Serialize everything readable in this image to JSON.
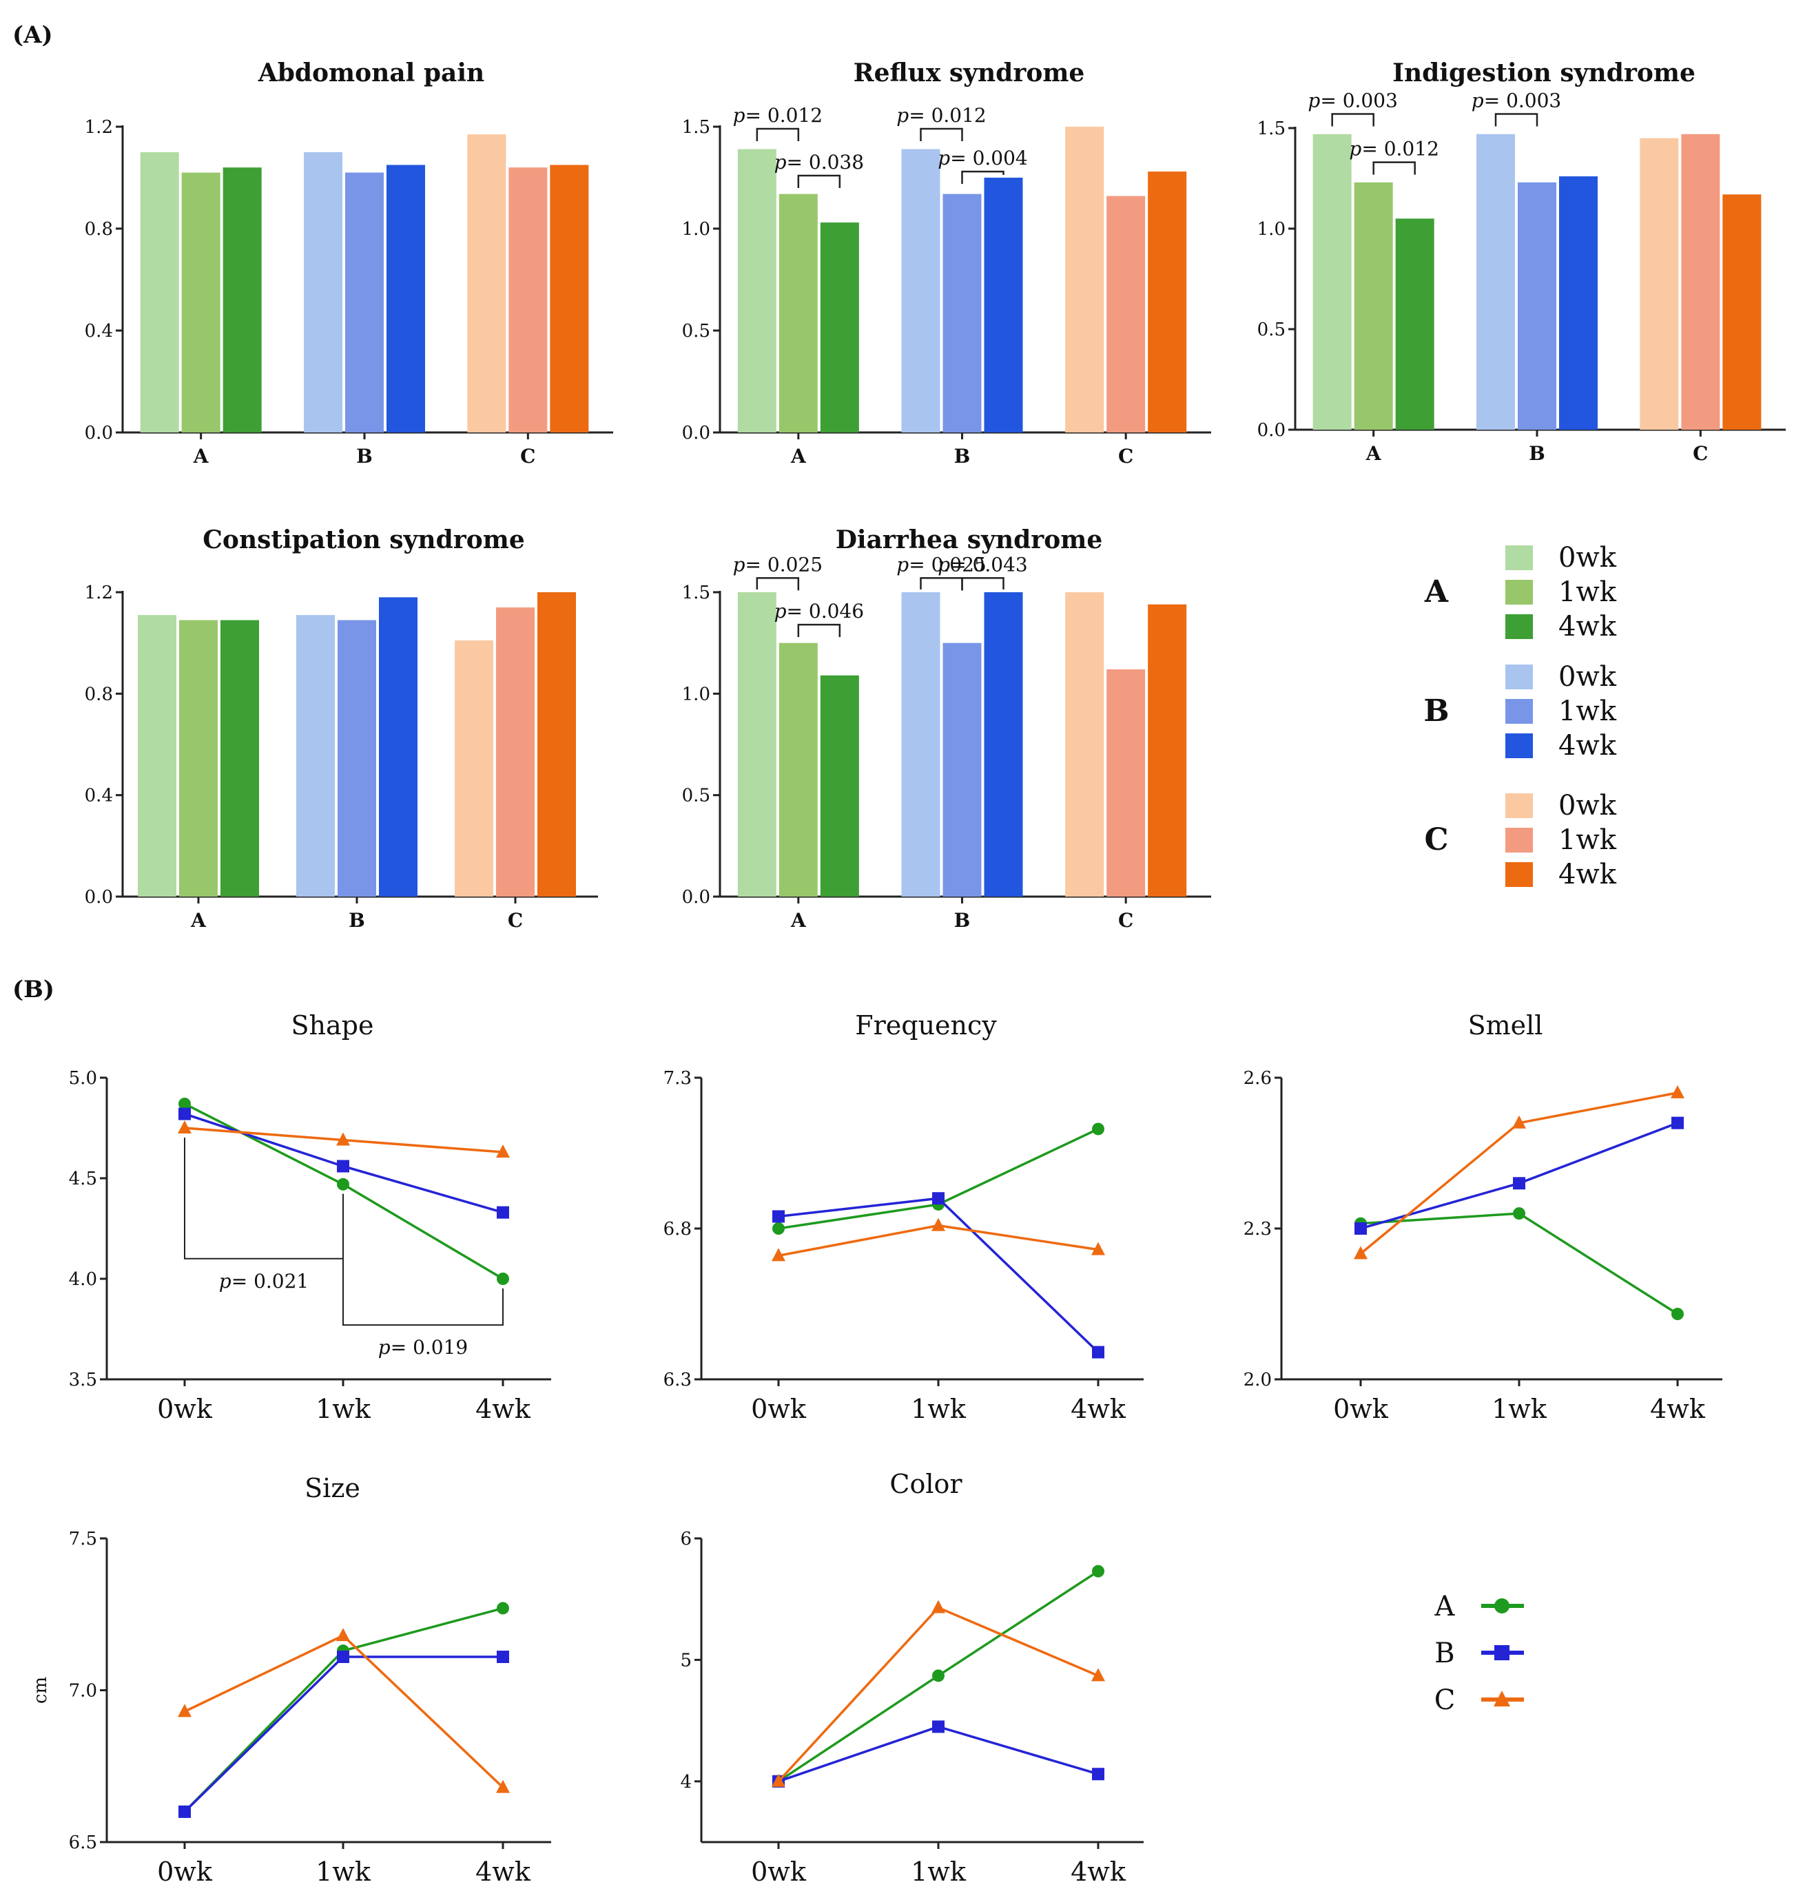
{
  "panel_labels": {
    "a": "(A)",
    "b": "(B)"
  },
  "colors": {
    "A": [
      "#b0dba2",
      "#98c76b",
      "#3d9f34"
    ],
    "B": [
      "#a9c4ef",
      "#7895e8",
      "#2256de"
    ],
    "C": [
      "#fac9a2",
      "#f39b80",
      "#ec6a10"
    ],
    "line": {
      "A": "#1e9a1e",
      "B": "#2424d6",
      "C": "#ee6a10"
    }
  },
  "legend": {
    "groups": [
      "A",
      "B",
      "C"
    ],
    "timepoints": [
      "0wk",
      "1wk",
      "4wk"
    ]
  },
  "chart_data": [
    {
      "type": "bar",
      "title": "Abdomonal pain",
      "categories": [
        "A",
        "B",
        "C"
      ],
      "series": [
        {
          "name": "0wk",
          "values": [
            1.1,
            1.1,
            1.17
          ]
        },
        {
          "name": "1wk",
          "values": [
            1.02,
            1.02,
            1.04
          ]
        },
        {
          "name": "4wk",
          "values": [
            1.04,
            1.05,
            1.05
          ]
        }
      ],
      "ylim": [
        0,
        1.2
      ],
      "yticks": [
        "0.0",
        "0.4",
        "0.8",
        "1.2"
      ],
      "annotations": []
    },
    {
      "type": "bar",
      "title": "Reflux syndrome",
      "categories": [
        "A",
        "B",
        "C"
      ],
      "series": [
        {
          "name": "0wk",
          "values": [
            1.39,
            1.39,
            1.5
          ]
        },
        {
          "name": "1wk",
          "values": [
            1.17,
            1.17,
            1.16
          ]
        },
        {
          "name": "4wk",
          "values": [
            1.03,
            1.25,
            1.28
          ]
        }
      ],
      "ylim": [
        0,
        1.5
      ],
      "yticks": [
        "0.0",
        "0.5",
        "1.0",
        "1.5"
      ],
      "annotations": [
        {
          "group": 0,
          "from": 0,
          "to": 1,
          "level": 1.49,
          "text": "p= 0.012"
        },
        {
          "group": 0,
          "from": 1,
          "to": 2,
          "level": 1.26,
          "text": "p= 0.038"
        },
        {
          "group": 1,
          "from": 0,
          "to": 1,
          "level": 1.49,
          "text": "p= 0.012"
        },
        {
          "group": 1,
          "from": 1,
          "to": 2,
          "level": 1.28,
          "text": "p= 0.004"
        }
      ]
    },
    {
      "type": "bar",
      "title": "Indigestion syndrome",
      "categories": [
        "A",
        "B",
        "C"
      ],
      "series": [
        {
          "name": "0wk",
          "values": [
            1.47,
            1.47,
            1.45
          ]
        },
        {
          "name": "1wk",
          "values": [
            1.23,
            1.23,
            1.47
          ]
        },
        {
          "name": "4wk",
          "values": [
            1.05,
            1.26,
            1.17
          ]
        }
      ],
      "ylim": [
        0,
        1.5
      ],
      "yticks": [
        "0.0",
        "0.5",
        "1.0",
        "1.5"
      ],
      "annotations": [
        {
          "group": 0,
          "from": 0,
          "to": 1,
          "level": 1.57,
          "text": "p= 0.003"
        },
        {
          "group": 0,
          "from": 1,
          "to": 2,
          "level": 1.33,
          "text": "p= 0.012"
        },
        {
          "group": 1,
          "from": 0,
          "to": 1,
          "level": 1.57,
          "text": "p= 0.003"
        }
      ]
    },
    {
      "type": "bar",
      "title": "Constipation syndrome",
      "categories": [
        "A",
        "B",
        "C"
      ],
      "series": [
        {
          "name": "0wk",
          "values": [
            1.11,
            1.11,
            1.01
          ]
        },
        {
          "name": "1wk",
          "values": [
            1.09,
            1.09,
            1.14
          ]
        },
        {
          "name": "4wk",
          "values": [
            1.09,
            1.18,
            1.2
          ]
        }
      ],
      "ylim": [
        0,
        1.2
      ],
      "yticks": [
        "0.0",
        "0.4",
        "0.8",
        "1.2"
      ],
      "annotations": []
    },
    {
      "type": "bar",
      "title": "Diarrhea syndrome",
      "categories": [
        "A",
        "B",
        "C"
      ],
      "series": [
        {
          "name": "0wk",
          "values": [
            1.5,
            1.5,
            1.5
          ]
        },
        {
          "name": "1wk",
          "values": [
            1.25,
            1.25,
            1.12
          ]
        },
        {
          "name": "4wk",
          "values": [
            1.09,
            1.5,
            1.44
          ]
        }
      ],
      "ylim": [
        0,
        1.5
      ],
      "yticks": [
        "0.0",
        "0.5",
        "1.0",
        "1.5"
      ],
      "annotations": [
        {
          "group": 0,
          "from": 0,
          "to": 1,
          "level": 1.57,
          "text": "p= 0.025"
        },
        {
          "group": 0,
          "from": 1,
          "to": 2,
          "level": 1.34,
          "text": "p= 0.046"
        },
        {
          "group": 1,
          "from": 0,
          "to": 1,
          "level": 1.57,
          "text": "p= 0.025"
        },
        {
          "group": 1,
          "from": 1,
          "to": 2,
          "level": 1.57,
          "text": "p= 0.043"
        }
      ]
    },
    {
      "type": "line",
      "title": "Shape",
      "x": [
        "0wk",
        "1wk",
        "4wk"
      ],
      "series": [
        {
          "name": "A",
          "marker": "circle",
          "values": [
            4.87,
            4.47,
            4.0
          ]
        },
        {
          "name": "B",
          "marker": "square",
          "values": [
            4.82,
            4.56,
            4.33
          ]
        },
        {
          "name": "C",
          "marker": "triangle",
          "values": [
            4.75,
            4.69,
            4.63
          ]
        }
      ],
      "ylim": [
        3.5,
        5.0
      ],
      "yticks": [
        "3.5",
        "4.0",
        "4.5",
        "5.0"
      ],
      "ylabel": "",
      "annotations": [
        {
          "from": 0,
          "to": 1,
          "level": 4.1,
          "text": "p= 0.021"
        },
        {
          "from": 1,
          "to": 2,
          "level": 3.77,
          "text": "p= 0.019"
        }
      ]
    },
    {
      "type": "line",
      "title": "Frequency",
      "x": [
        "0wk",
        "1wk",
        "4wk"
      ],
      "series": [
        {
          "name": "A",
          "marker": "circle",
          "values": [
            6.8,
            6.88,
            7.13
          ]
        },
        {
          "name": "B",
          "marker": "square",
          "values": [
            6.84,
            6.9,
            6.39
          ]
        },
        {
          "name": "C",
          "marker": "triangle",
          "values": [
            6.71,
            6.81,
            6.73
          ]
        }
      ],
      "ylim": [
        6.3,
        7.3
      ],
      "yticks": [
        "6.3",
        "6.8",
        "7.3"
      ],
      "ylabel": "",
      "annotations": []
    },
    {
      "type": "line",
      "title": "Smell",
      "x": [
        "0wk",
        "1wk",
        "4wk"
      ],
      "series": [
        {
          "name": "A",
          "marker": "circle",
          "values": [
            2.31,
            2.33,
            2.13
          ]
        },
        {
          "name": "B",
          "marker": "square",
          "values": [
            2.3,
            2.39,
            2.51
          ]
        },
        {
          "name": "C",
          "marker": "triangle",
          "values": [
            2.25,
            2.51,
            2.57
          ]
        }
      ],
      "ylim": [
        2.0,
        2.6
      ],
      "yticks": [
        "2.0",
        "2.3",
        "2.6"
      ],
      "ylabel": "",
      "annotations": []
    },
    {
      "type": "line",
      "title": "Size",
      "x": [
        "0wk",
        "1wk",
        "4wk"
      ],
      "series": [
        {
          "name": "A",
          "marker": "circle",
          "values": [
            6.6,
            7.13,
            7.27
          ]
        },
        {
          "name": "B",
          "marker": "square",
          "values": [
            6.6,
            7.11,
            7.11
          ]
        },
        {
          "name": "C",
          "marker": "triangle",
          "values": [
            6.93,
            7.18,
            6.68
          ]
        }
      ],
      "ylim": [
        6.5,
        7.5
      ],
      "yticks": [
        "6.5",
        "7.0",
        "7.5"
      ],
      "ylabel": "cm",
      "annotations": []
    },
    {
      "type": "line",
      "title": "Color",
      "x": [
        "0wk",
        "1wk",
        "4wk"
      ],
      "series": [
        {
          "name": "A",
          "marker": "circle",
          "values": [
            4.0,
            4.87,
            5.73
          ]
        },
        {
          "name": "B",
          "marker": "square",
          "values": [
            4.0,
            4.45,
            4.06
          ]
        },
        {
          "name": "C",
          "marker": "triangle",
          "values": [
            4.0,
            5.43,
            4.87
          ]
        }
      ],
      "ylim": [
        3.5,
        6.0
      ],
      "yticks": [
        "4",
        "5",
        "6"
      ],
      "ylabel": "",
      "annotations": []
    }
  ]
}
